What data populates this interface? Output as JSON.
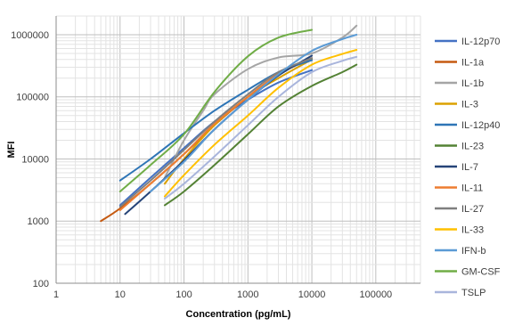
{
  "chart_data": {
    "type": "line",
    "title": "",
    "xlabel": "Concentration (pg/mL)",
    "ylabel": "MFI",
    "x_scale": "log",
    "y_scale": "log",
    "xlim": [
      1,
      500000
    ],
    "ylim": [
      100,
      2000000
    ],
    "x_tick_labels": [
      "1",
      "10",
      "100",
      "1000",
      "10000",
      "100000"
    ],
    "y_tick_labels": [
      "100",
      "1000",
      "10000",
      "100000",
      "1000000"
    ],
    "grid": true,
    "legend_position": "right",
    "series": [
      {
        "name": "IL-12p70",
        "color": "#4472C4",
        "x": [
          10,
          30,
          100,
          300,
          1000,
          3000,
          10000
        ],
        "y": [
          1800,
          5000,
          15000,
          40000,
          90000,
          170000,
          270000
        ]
      },
      {
        "name": "IL-1a",
        "color": "#C55A11",
        "x": [
          5,
          10,
          30,
          100,
          300,
          1000,
          3000,
          10000
        ],
        "y": [
          1000,
          1600,
          4000,
          12000,
          35000,
          100000,
          230000,
          420000
        ]
      },
      {
        "name": "IL-1b",
        "color": "#A5A5A5",
        "x": [
          50,
          100,
          200,
          300,
          1000,
          3000,
          10000,
          30000,
          50000
        ],
        "y": [
          5000,
          20000,
          60000,
          110000,
          280000,
          430000,
          500000,
          900000,
          1400000
        ]
      },
      {
        "name": "IL-3",
        "color": "#DBA101",
        "x": [
          50,
          100,
          300,
          1000,
          3000,
          10000
        ],
        "y": [
          4000,
          10000,
          35000,
          100000,
          200000,
          400000
        ]
      },
      {
        "name": "IL-12p40",
        "color": "#2E75B6",
        "x": [
          10,
          30,
          100,
          300,
          1000,
          3000,
          10000
        ],
        "y": [
          4500,
          10000,
          26000,
          60000,
          130000,
          250000,
          390000
        ]
      },
      {
        "name": "IL-23",
        "color": "#548235",
        "x": [
          50,
          100,
          300,
          1000,
          3000,
          10000,
          30000,
          50000
        ],
        "y": [
          1800,
          3000,
          8000,
          25000,
          70000,
          150000,
          250000,
          330000
        ]
      },
      {
        "name": "IL-7",
        "color": "#264478",
        "x": [
          12,
          30,
          100,
          300,
          1000,
          3000,
          10000
        ],
        "y": [
          1300,
          3000,
          9500,
          30000,
          90000,
          220000,
          460000
        ]
      },
      {
        "name": "IL-11",
        "color": "#ED7D31",
        "x": [
          10,
          30,
          100,
          300,
          1000,
          3000
        ],
        "y": [
          1500,
          4000,
          12000,
          37000,
          100000,
          240000
        ]
      },
      {
        "name": "IL-27",
        "color": "#7F7F7F",
        "x": [
          10,
          30,
          100,
          300,
          1000,
          3000,
          10000
        ],
        "y": [
          1700,
          4500,
          14000,
          40000,
          110000,
          250000,
          420000
        ]
      },
      {
        "name": "IL-33",
        "color": "#FFC000",
        "x": [
          50,
          100,
          300,
          1000,
          3000,
          10000,
          30000,
          50000
        ],
        "y": [
          2500,
          5500,
          17000,
          50000,
          140000,
          330000,
          490000,
          570000
        ]
      },
      {
        "name": "IFN-b",
        "color": "#5B9BD5",
        "x": [
          30,
          100,
          300,
          1000,
          3000,
          10000,
          30000,
          50000
        ],
        "y": [
          3000,
          9000,
          30000,
          90000,
          230000,
          550000,
          850000,
          1000000
        ]
      },
      {
        "name": "GM-CSF",
        "color": "#70AD47",
        "x": [
          10,
          30,
          100,
          300,
          1000,
          3000,
          10000
        ],
        "y": [
          3000,
          8000,
          25000,
          120000,
          450000,
          900000,
          1200000
        ]
      },
      {
        "name": "TSLP",
        "color": "#A9B5DC",
        "x": [
          50,
          100,
          300,
          1000,
          3000,
          10000,
          30000,
          50000
        ],
        "y": [
          2300,
          4000,
          11000,
          35000,
          100000,
          250000,
          380000,
          440000
        ]
      }
    ]
  }
}
